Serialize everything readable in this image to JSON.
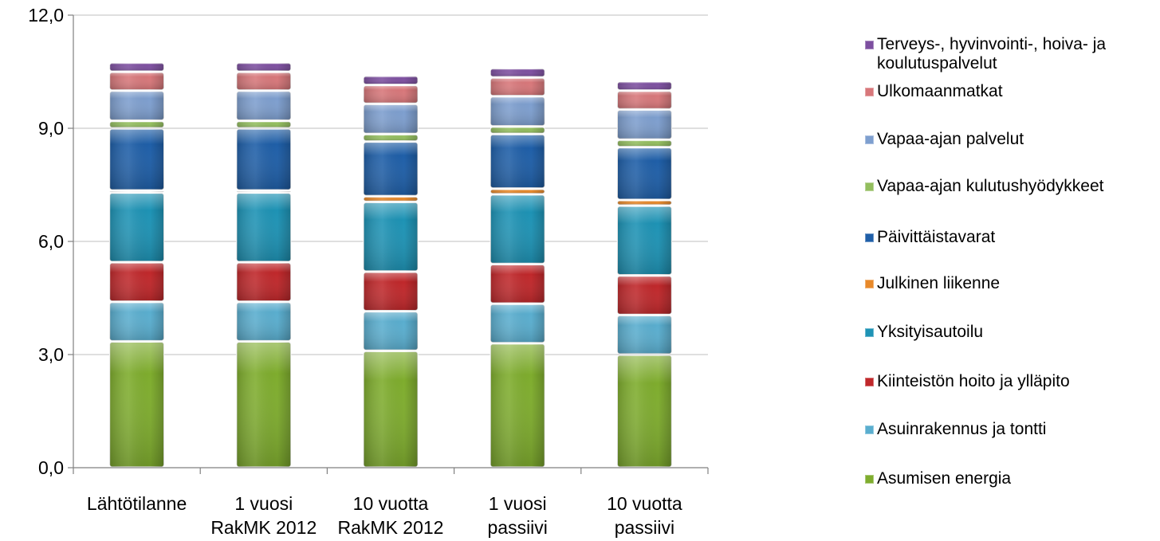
{
  "chart_data": {
    "type": "bar",
    "stacked": true,
    "categories": [
      "Lähtötilanne",
      "1 vuosi\nRakMK 2012",
      "10 vuotta\nRakMK 2012",
      "1 vuosi\npassiivi",
      "10 vuotta\npassiivi"
    ],
    "series": [
      {
        "name": "Asumisen energia",
        "color": "#7FAD2E",
        "values": [
          3.35,
          3.35,
          3.1,
          3.3,
          3.0
        ]
      },
      {
        "name": "Asuinrakennus ja tontti",
        "color": "#5AAECF",
        "values": [
          1.05,
          1.05,
          1.05,
          1.05,
          1.05
        ]
      },
      {
        "name": "Kiinteistön hoito ja ylläpito",
        "color": "#C0282B",
        "values": [
          1.05,
          1.05,
          1.05,
          1.05,
          1.05
        ]
      },
      {
        "name": "Yksityisautoilu",
        "color": "#1E93B5",
        "values": [
          1.85,
          1.85,
          1.85,
          1.85,
          1.85
        ]
      },
      {
        "name": "Julkinen liikenne",
        "color": "#E8892A",
        "values": [
          0.05,
          0.05,
          0.15,
          0.15,
          0.15
        ]
      },
      {
        "name": "Päivittäistavarat",
        "color": "#1F5FA8",
        "values": [
          1.65,
          1.65,
          1.45,
          1.45,
          1.4
        ]
      },
      {
        "name": "Vapaa-ajan kulutushyödykkeet",
        "color": "#93BE5E",
        "values": [
          0.2,
          0.2,
          0.2,
          0.2,
          0.2
        ]
      },
      {
        "name": "Vapaa-ajan palvelut",
        "color": "#7E9FCF",
        "values": [
          0.8,
          0.8,
          0.8,
          0.8,
          0.8
        ]
      },
      {
        "name": "Ulkomaanmatkat",
        "color": "#D8777A",
        "values": [
          0.5,
          0.5,
          0.5,
          0.5,
          0.5
        ]
      },
      {
        "name": "Terveys-, hyvinvointi-, hoiva- ja koulutuspalvelut",
        "color": "#7D4FA0",
        "values": [
          0.25,
          0.25,
          0.25,
          0.25,
          0.25
        ]
      }
    ],
    "yticks": [
      "0,0",
      "3,0",
      "6,0",
      "9,0",
      "12,0"
    ],
    "ytick_values": [
      0,
      3,
      6,
      9,
      12
    ],
    "ylim": [
      0,
      12
    ],
    "grid": true,
    "legend_position": "right"
  },
  "legend": {
    "items": [
      {
        "label": "Terveys-, hyvinvointi-, hoiva- ja\nkoulutuspalvelut",
        "color": "#7D4FA0"
      },
      {
        "label": "Ulkomaanmatkat",
        "color": "#D8777A"
      },
      {
        "label": "Vapaa-ajan palvelut",
        "color": "#7E9FCF"
      },
      {
        "label": "Vapaa-ajan kulutushyödykkeet",
        "color": "#93BE5E"
      },
      {
        "label": "Päivittäistavarat",
        "color": "#1F5FA8"
      },
      {
        "label": "Julkinen liikenne",
        "color": "#E8892A"
      },
      {
        "label": "Yksityisautoilu",
        "color": "#1E93B5"
      },
      {
        "label": "Kiinteistön hoito ja ylläpito",
        "color": "#C0282B"
      },
      {
        "label": "Asuinrakennus ja tontti",
        "color": "#5AAECF"
      },
      {
        "label": "Asumisen energia",
        "color": "#7FAD2E"
      }
    ]
  }
}
